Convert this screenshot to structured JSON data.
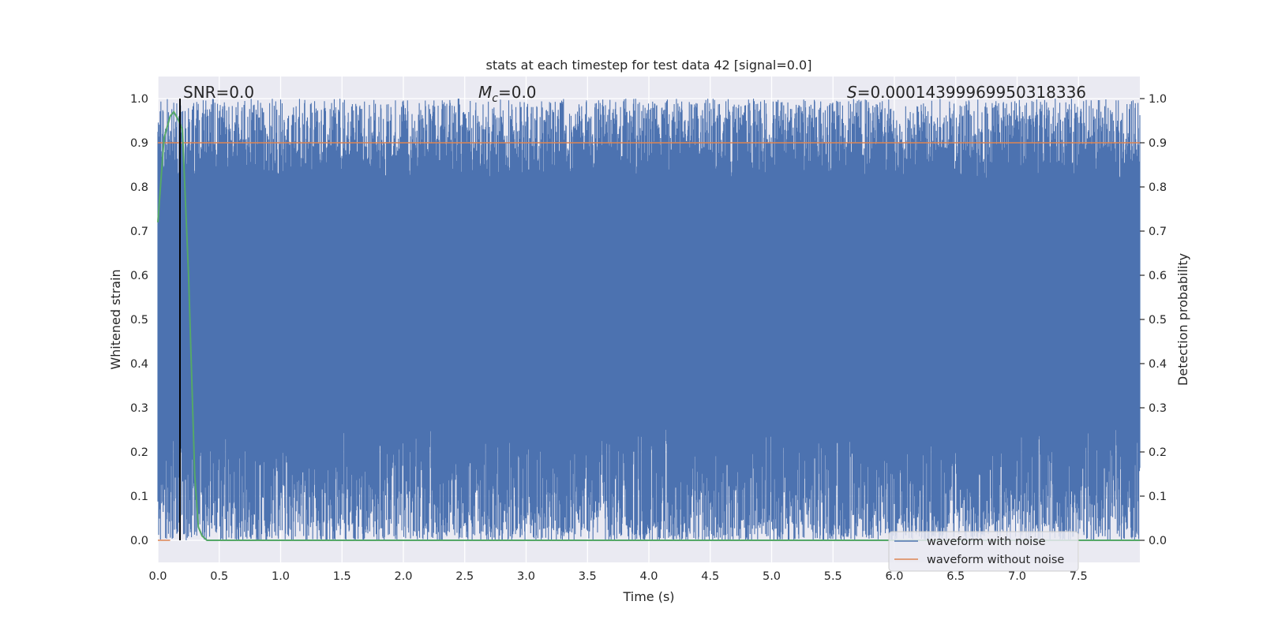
{
  "chart_data": {
    "type": "line",
    "title": "stats at each timestep for test data 42 [signal=0.0]",
    "xlabel": "Time (s)",
    "ylabel": "Whitened strain",
    "ylabel_right": "Detection probability",
    "xlim": [
      0.0,
      8.0
    ],
    "ylim": [
      -0.05,
      1.05
    ],
    "xticks": [
      "0.0",
      "0.5",
      "1.0",
      "1.5",
      "2.0",
      "2.5",
      "3.0",
      "3.5",
      "4.0",
      "4.5",
      "5.0",
      "5.5",
      "6.0",
      "6.5",
      "7.0",
      "7.5"
    ],
    "yticks": [
      "0.0",
      "0.1",
      "0.2",
      "0.3",
      "0.4",
      "0.5",
      "0.6",
      "0.7",
      "0.8",
      "0.9",
      "1.0"
    ],
    "yticks_right": [
      "0.0",
      "0.1",
      "0.2",
      "0.3",
      "0.4",
      "0.5",
      "0.6",
      "0.7",
      "0.8",
      "0.9",
      "1.0"
    ],
    "grid": true,
    "legend_placement": "lower-right",
    "annotations": {
      "snr": "SNR=0.0",
      "mc_symbol": "M",
      "mc_sub": "c",
      "mc_value": "=0.0",
      "s_symbol": "S",
      "s_value": "=0.00014399969950318336"
    },
    "threshold": {
      "y": 0.9,
      "color": "#dd8452"
    },
    "vline": {
      "x": 0.18,
      "y0": 0.0,
      "y1": 1.0,
      "color": "#000000"
    },
    "series": [
      {
        "name": "waveform with noise",
        "color": "#4c72b0",
        "kind": "noise",
        "x_range": [
          0.0,
          8.0
        ],
        "y_range": [
          0.0,
          1.0
        ],
        "typical_low": [
          0.0,
          0.25
        ],
        "typical_high": [
          0.82,
          1.0
        ]
      },
      {
        "name": "waveform without noise",
        "color": "#dd8452",
        "x": [
          0.0,
          0.1
        ],
        "y": [
          0.0,
          0.0
        ]
      },
      {
        "name": "",
        "color": "#55a868",
        "x": [
          0.0,
          0.05,
          0.1,
          0.13,
          0.17,
          0.2,
          0.25,
          0.3,
          0.33,
          0.36,
          0.4,
          1.0,
          2.0,
          3.0,
          4.0,
          5.0,
          6.0,
          7.0,
          8.0
        ],
        "y": [
          0.72,
          0.91,
          0.96,
          0.97,
          0.95,
          0.93,
          0.6,
          0.15,
          0.03,
          0.01,
          0.0,
          0.0,
          0.0,
          0.0,
          0.0,
          0.0,
          0.0,
          0.0,
          0.0
        ]
      }
    ],
    "colors": {
      "background": "#eaeaf2",
      "grid": "#ffffff",
      "noise": "#4c72b0",
      "clean": "#dd8452",
      "probability": "#55a868"
    }
  }
}
